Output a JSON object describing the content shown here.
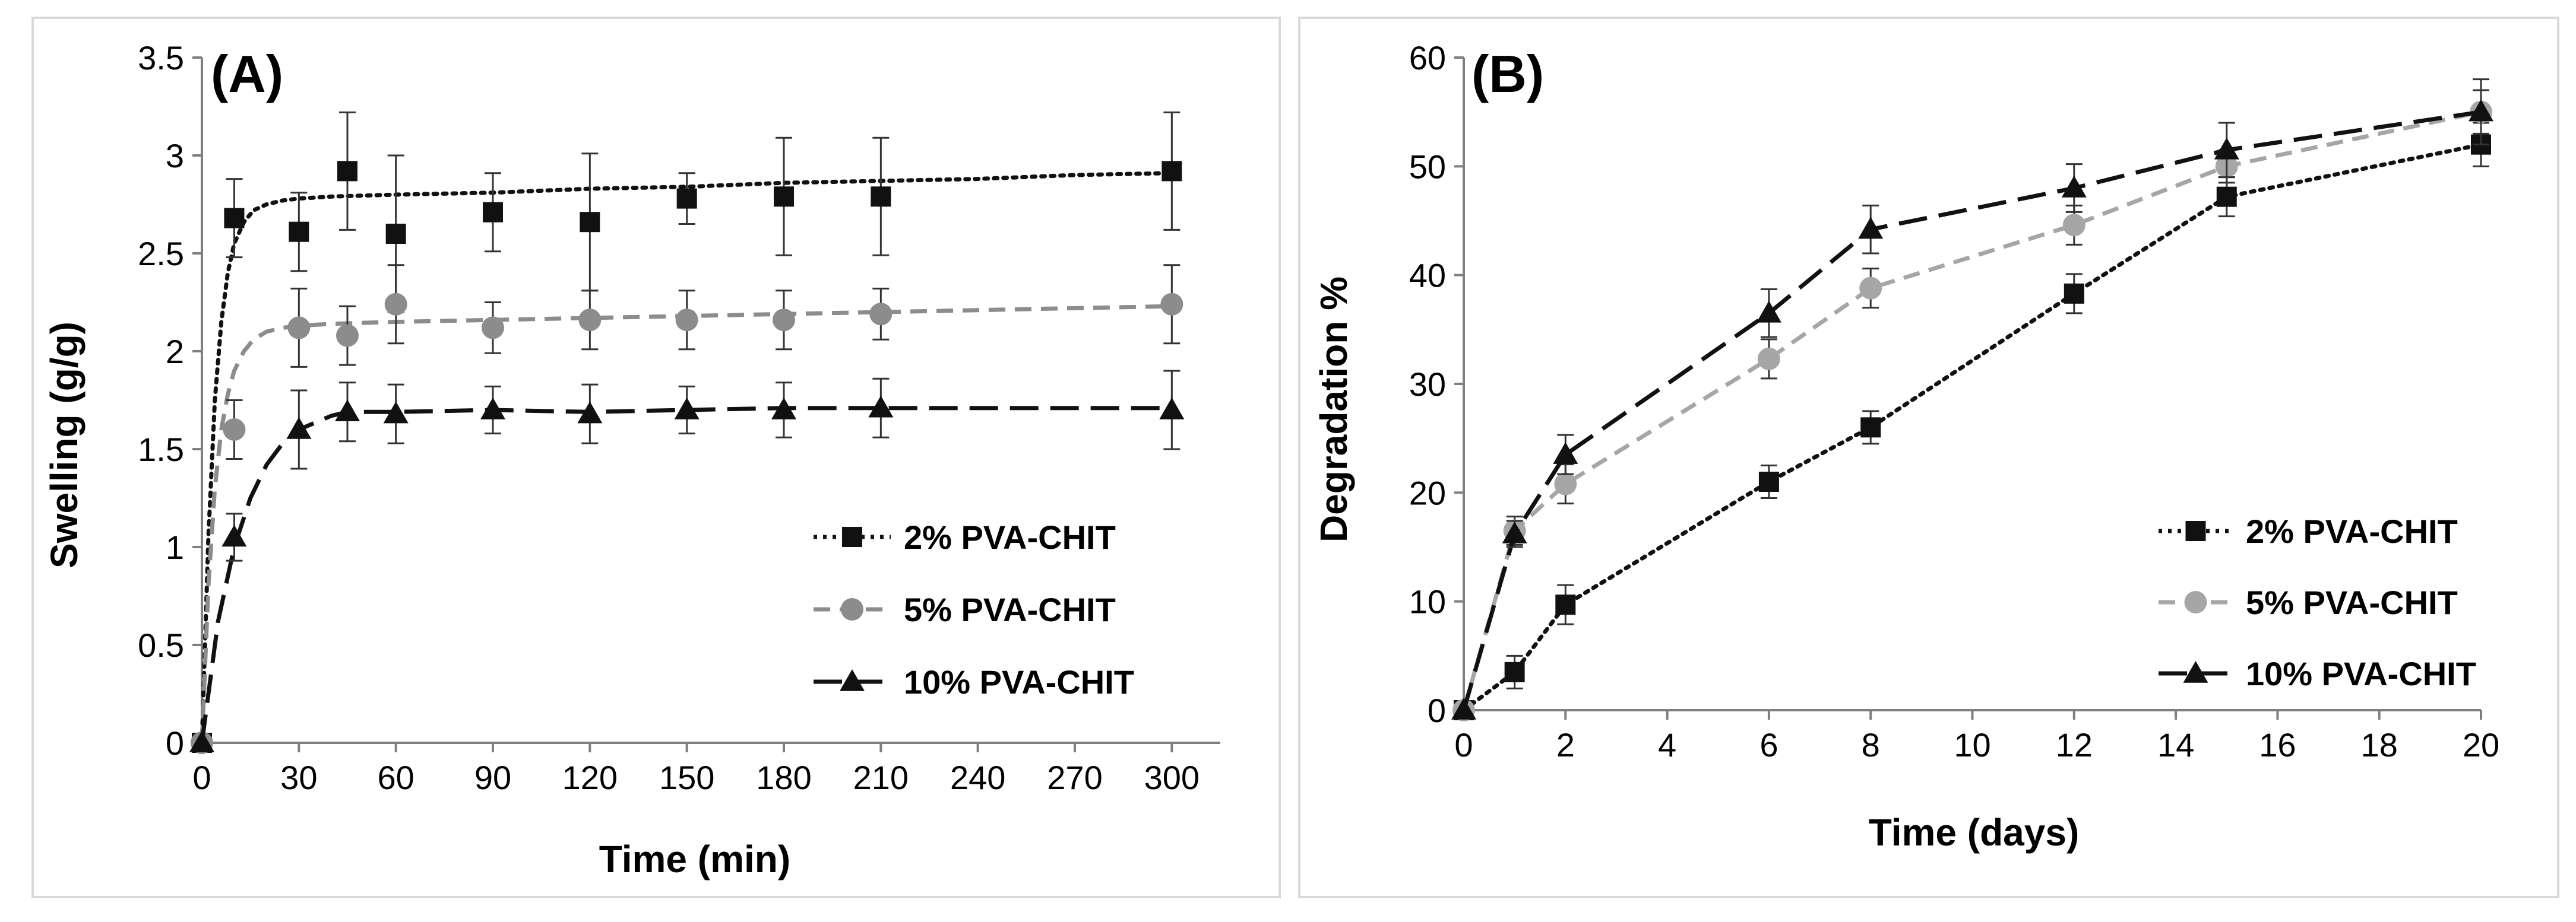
{
  "chart_data": [
    {
      "type": "line",
      "panel_label": "(A)",
      "xlabel": "Time (min)",
      "ylabel": "Swelling (g/g)",
      "xlim": [
        0,
        315
      ],
      "ylim": [
        0,
        3.5
      ],
      "xticks": [
        0,
        30,
        60,
        90,
        120,
        150,
        180,
        210,
        240,
        270,
        300
      ],
      "xtick_labels": [
        "0",
        "30",
        "60",
        "90",
        "120",
        "150",
        "180",
        "210",
        "240",
        "270",
        "300"
      ],
      "yticks": [
        0,
        0.5,
        1,
        1.5,
        2,
        2.5,
        3,
        3.5
      ],
      "ytick_labels": [
        "0",
        "0.5",
        "1",
        "1.5",
        "2",
        "2.5",
        "3",
        "3.5"
      ],
      "legend_position": "right-middle",
      "series": [
        {
          "name": "2% PVA-CHIT",
          "marker": "square",
          "color": "#111111",
          "dash": "dotted",
          "x": [
            0,
            10,
            30,
            45,
            60,
            90,
            120,
            150,
            180,
            210,
            300
          ],
          "y": [
            0,
            2.68,
            2.61,
            2.92,
            2.6,
            2.71,
            2.66,
            2.78,
            2.79,
            2.79,
            2.92
          ],
          "err": [
            0,
            0.2,
            0.2,
            0.3,
            0.4,
            0.2,
            0.35,
            0.13,
            0.3,
            0.3,
            0.3
          ],
          "trend_x": [
            0,
            2,
            4,
            6,
            8,
            10,
            13,
            16,
            20,
            25,
            30,
            40,
            60,
            90,
            120,
            150,
            180,
            210,
            240,
            270,
            300
          ],
          "trend_y": [
            0,
            1.05,
            1.75,
            2.15,
            2.4,
            2.55,
            2.66,
            2.72,
            2.75,
            2.77,
            2.78,
            2.79,
            2.8,
            2.81,
            2.83,
            2.84,
            2.86,
            2.87,
            2.88,
            2.9,
            2.91
          ]
        },
        {
          "name": "5% PVA-CHIT",
          "marker": "circle",
          "color": "#8c8c8c",
          "dash": "dashed",
          "x": [
            0,
            10,
            30,
            45,
            60,
            90,
            120,
            150,
            180,
            210,
            300
          ],
          "y": [
            0,
            1.6,
            2.12,
            2.08,
            2.24,
            2.12,
            2.16,
            2.16,
            2.16,
            2.19,
            2.24
          ],
          "err": [
            0,
            0.15,
            0.2,
            0.15,
            0.2,
            0.13,
            0.15,
            0.15,
            0.15,
            0.13,
            0.2
          ],
          "trend_x": [
            0,
            2,
            4,
            6,
            8,
            10,
            13,
            16,
            20,
            25,
            30,
            40,
            60,
            90,
            120,
            150,
            180,
            210,
            240,
            270,
            300
          ],
          "trend_y": [
            0,
            0.8,
            1.3,
            1.6,
            1.78,
            1.9,
            2.0,
            2.06,
            2.1,
            2.12,
            2.13,
            2.14,
            2.15,
            2.16,
            2.17,
            2.18,
            2.19,
            2.2,
            2.21,
            2.22,
            2.23
          ]
        },
        {
          "name": "10% PVA-CHIT",
          "marker": "triangle",
          "color": "#111111",
          "dash": "longdash",
          "x": [
            0,
            10,
            30,
            45,
            60,
            90,
            120,
            150,
            180,
            210,
            300
          ],
          "y": [
            0,
            1.05,
            1.6,
            1.69,
            1.68,
            1.7,
            1.68,
            1.7,
            1.7,
            1.71,
            1.7
          ],
          "err": [
            0,
            0.12,
            0.2,
            0.15,
            0.15,
            0.12,
            0.15,
            0.12,
            0.14,
            0.15,
            0.2
          ],
          "trend_x": [
            0,
            5,
            10,
            15,
            20,
            25,
            30,
            40,
            45,
            60,
            90,
            120,
            150,
            180,
            210,
            300
          ],
          "trend_y": [
            0,
            0.62,
            1.0,
            1.25,
            1.42,
            1.53,
            1.6,
            1.67,
            1.69,
            1.69,
            1.7,
            1.69,
            1.7,
            1.71,
            1.71,
            1.71
          ]
        }
      ]
    },
    {
      "type": "line",
      "panel_label": "(B)",
      "xlabel": "Time (days)",
      "ylabel": "Degradation %",
      "xlim": [
        0,
        20
      ],
      "ylim": [
        0,
        60
      ],
      "xticks": [
        0,
        2,
        4,
        6,
        8,
        10,
        12,
        14,
        16,
        18,
        20
      ],
      "xtick_labels": [
        "0",
        "2",
        "4",
        "6",
        "8",
        "10",
        "12",
        "14",
        "16",
        "18",
        "20"
      ],
      "yticks": [
        0,
        10,
        20,
        30,
        40,
        50,
        60
      ],
      "ytick_labels": [
        "0",
        "10",
        "20",
        "30",
        "40",
        "50",
        "60"
      ],
      "legend_position": "right-middle",
      "series": [
        {
          "name": "2% PVA-CHIT",
          "marker": "square",
          "color": "#111111",
          "dash": "dotted",
          "x": [
            0,
            1,
            2,
            6,
            8,
            12,
            15,
            20
          ],
          "y": [
            0,
            3.5,
            9.7,
            21.0,
            26.0,
            38.3,
            47.2,
            52.0
          ],
          "err": [
            0,
            1.5,
            1.8,
            1.5,
            1.5,
            1.8,
            1.8,
            2.0
          ]
        },
        {
          "name": "5% PVA-CHIT",
          "marker": "circle",
          "color": "#a6a6a6",
          "dash": "dashed",
          "x": [
            0,
            1,
            2,
            6,
            8,
            12,
            15,
            20
          ],
          "y": [
            0,
            16.5,
            20.8,
            32.3,
            38.8,
            44.6,
            50.0,
            55.0
          ],
          "err": [
            0,
            1.3,
            1.8,
            1.8,
            1.8,
            1.8,
            1.5,
            2.0
          ]
        },
        {
          "name": "10% PVA-CHIT",
          "marker": "triangle",
          "color": "#111111",
          "dash": "longdash",
          "x": [
            0,
            1,
            2,
            6,
            8,
            12,
            15,
            20
          ],
          "y": [
            0,
            16.2,
            23.5,
            36.5,
            44.2,
            48.0,
            51.5,
            55.0
          ],
          "err": [
            0,
            1.2,
            1.8,
            2.2,
            2.2,
            2.2,
            2.5,
            3.0
          ]
        }
      ]
    }
  ]
}
